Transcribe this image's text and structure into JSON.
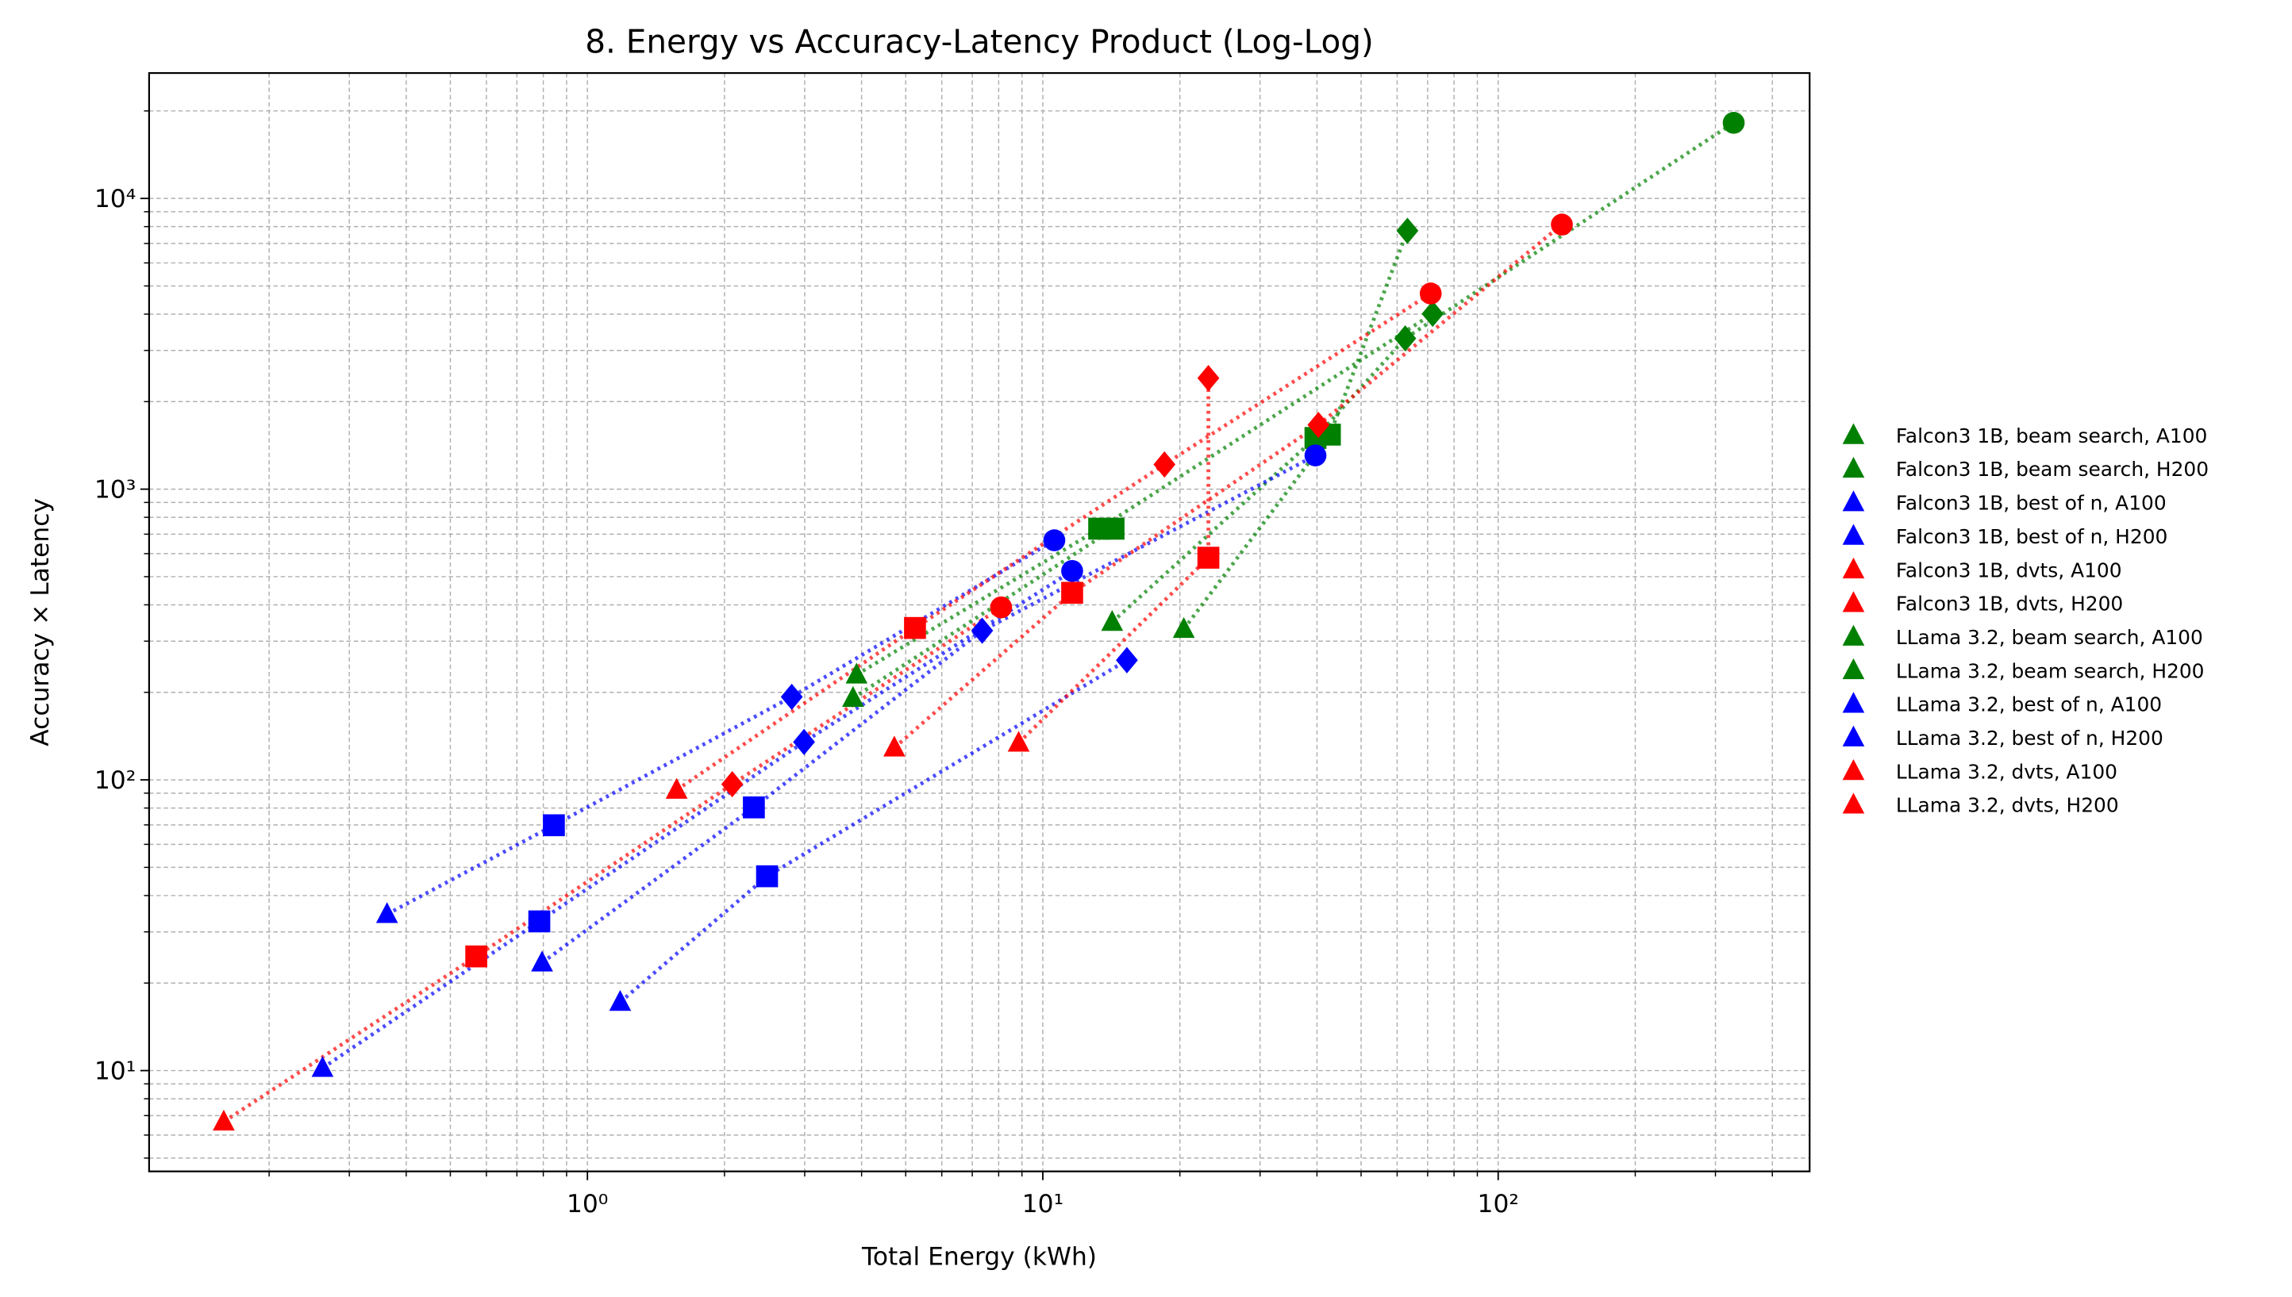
{
  "chart_data": {
    "type": "scatter",
    "title": "8. Energy vs Accuracy-Latency Product (Log-Log)",
    "xlabel": "Total Energy (kWh)",
    "ylabel": "Accuracy × Latency",
    "xscale": "log",
    "yscale": "log",
    "grid": true,
    "legend": "outside right",
    "marker_order": [
      "^",
      "s",
      "D",
      "o"
    ],
    "xlim": [
      0.109,
      483
    ],
    "ylim": [
      4.5,
      27000
    ],
    "xticks": [
      {
        "value": 1,
        "label": "10⁰"
      },
      {
        "value": 10,
        "label": "10¹"
      },
      {
        "value": 100,
        "label": "10²"
      }
    ],
    "yticks": [
      {
        "value": 10,
        "label": "10¹"
      },
      {
        "value": 100,
        "label": "10²"
      },
      {
        "value": 1000,
        "label": "10³"
      },
      {
        "value": 10000,
        "label": "10⁴"
      }
    ],
    "xminor": [
      0.2,
      0.3,
      0.4,
      0.5,
      0.6,
      0.7,
      0.8,
      0.9,
      2,
      3,
      4,
      5,
      6,
      7,
      8,
      9,
      20,
      30,
      40,
      50,
      60,
      70,
      80,
      90,
      200,
      300,
      400
    ],
    "yminor": [
      5,
      6,
      7,
      8,
      9,
      20,
      30,
      40,
      50,
      60,
      70,
      80,
      90,
      200,
      300,
      400,
      500,
      600,
      700,
      800,
      900,
      2000,
      3000,
      4000,
      5000,
      6000,
      7000,
      8000,
      9000,
      20000
    ],
    "series": [
      {
        "name": "Falcon3 1B, beam search, A100",
        "color": "#008000",
        "x": [
          14.2,
          39.7,
          62.5,
          329
        ],
        "values": [
          349,
          1500,
          3300,
          18200
        ]
      },
      {
        "name": "Falcon3 1B, beam search, H200",
        "color": "#008000",
        "x": [
          20.4,
          42.7,
          63.2
        ],
        "values": [
          330,
          1540,
          7740
        ]
      },
      {
        "name": "Falcon3 1B, best of n, A100",
        "color": "#0000ff",
        "x": [
          0.795,
          2.32,
          7.36,
          39.7
        ],
        "values": [
          23.5,
          80.4,
          326,
          1306
        ]
      },
      {
        "name": "Falcon3 1B, best of n, H200",
        "color": "#0000ff",
        "x": [
          1.18,
          2.48,
          15.3
        ],
        "values": [
          17.2,
          46.6,
          258
        ]
      },
      {
        "name": "Falcon3 1B, dvts, A100",
        "color": "#ff0000",
        "x": [
          4.72,
          11.6,
          40.3,
          138
        ],
        "values": [
          129,
          440,
          1663,
          8130
        ]
      },
      {
        "name": "Falcon3 1B, dvts, H200",
        "color": "#ff0000",
        "x": [
          8.85,
          23.1,
          23.1
        ],
        "values": [
          134,
          581,
          2410
        ]
      },
      {
        "name": "LLama 3.2, beam search, A100",
        "color": "#008000",
        "x": [
          3.9,
          13.3,
          71.8
        ],
        "values": [
          230,
          731,
          4010
        ]
      },
      {
        "name": "LLama 3.2, beam search, H200",
        "color": "#008000",
        "x": [
          3.83,
          14.3
        ],
        "values": [
          191,
          731
        ]
      },
      {
        "name": "LLama 3.2, best of n, A100",
        "color": "#0000ff",
        "x": [
          0.363,
          0.844,
          2.81,
          10.6
        ],
        "values": [
          34.5,
          69.8,
          193,
          667
        ]
      },
      {
        "name": "LLama 3.2, best of n, H200",
        "color": "#0000ff",
        "x": [
          0.262,
          0.784,
          2.99,
          11.6
        ],
        "values": [
          10.2,
          32.6,
          135,
          523
        ]
      },
      {
        "name": "LLama 3.2, dvts, A100",
        "color": "#ff0000",
        "x": [
          0.159,
          0.57,
          2.08,
          8.1
        ],
        "values": [
          6.67,
          24.7,
          96.6,
          392
        ]
      },
      {
        "name": "LLama 3.2, dvts, H200",
        "color": "#ff0000",
        "x": [
          1.57,
          5.24,
          18.5,
          71.1
        ],
        "values": [
          92.3,
          333,
          1216,
          4710
        ]
      }
    ]
  }
}
